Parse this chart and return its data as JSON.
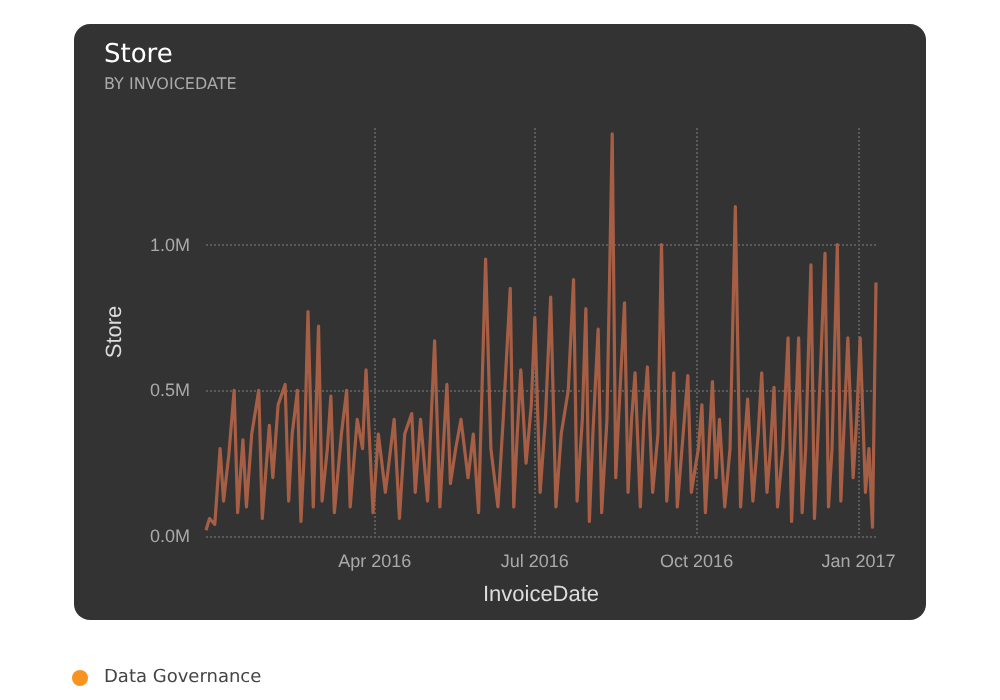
{
  "chart_data": {
    "type": "line",
    "title": "Store",
    "subtitle": "BY INVOICEDATE",
    "xlabel": "InvoiceDate",
    "ylabel": "Store",
    "annotations": [
      "Data Governance"
    ],
    "x": [
      "2015-12-27",
      "2015-12-29",
      "2016-01-01",
      "2016-01-04",
      "2016-01-06",
      "2016-01-09",
      "2016-01-12",
      "2016-01-14",
      "2016-01-17",
      "2016-01-19",
      "2016-01-22",
      "2016-01-26",
      "2016-01-28",
      "2016-02-01",
      "2016-02-03",
      "2016-02-06",
      "2016-02-10",
      "2016-02-12",
      "2016-02-14",
      "2016-02-17",
      "2016-02-19",
      "2016-02-21",
      "2016-02-23",
      "2016-02-26",
      "2016-02-29",
      "2016-03-02",
      "2016-03-05",
      "2016-03-07",
      "2016-03-09",
      "2016-03-13",
      "2016-03-16",
      "2016-03-18",
      "2016-03-22",
      "2016-03-25",
      "2016-03-27",
      "2016-03-31",
      "2016-04-03",
      "2016-04-07",
      "2016-04-10",
      "2016-04-12",
      "2016-04-15",
      "2016-04-18",
      "2016-04-22",
      "2016-04-24",
      "2016-04-27",
      "2016-05-01",
      "2016-05-05",
      "2016-05-08",
      "2016-05-12",
      "2016-05-14",
      "2016-05-17",
      "2016-05-20",
      "2016-05-24",
      "2016-05-27",
      "2016-05-30",
      "2016-06-03",
      "2016-06-06",
      "2016-06-10",
      "2016-06-13",
      "2016-06-17",
      "2016-06-19",
      "2016-06-21",
      "2016-06-23",
      "2016-06-26",
      "2016-06-29",
      "2016-07-01",
      "2016-07-04",
      "2016-07-07",
      "2016-07-10",
      "2016-07-13",
      "2016-07-16",
      "2016-07-20",
      "2016-07-23",
      "2016-07-25",
      "2016-07-28",
      "2016-07-30",
      "2016-08-01",
      "2016-08-03",
      "2016-08-06",
      "2016-08-08",
      "2016-08-11",
      "2016-08-14",
      "2016-08-16",
      "2016-08-18",
      "2016-08-21",
      "2016-08-23",
      "2016-08-25",
      "2016-08-27",
      "2016-08-30",
      "2016-09-01",
      "2016-09-03",
      "2016-09-06",
      "2016-09-09",
      "2016-09-11",
      "2016-09-14",
      "2016-09-16",
      "2016-09-18",
      "2016-09-20",
      "2016-09-24",
      "2016-09-26",
      "2016-09-28",
      "2016-10-02",
      "2016-10-04",
      "2016-10-06",
      "2016-10-10",
      "2016-10-12",
      "2016-10-14",
      "2016-10-17",
      "2016-10-20",
      "2016-10-23",
      "2016-10-26",
      "2016-10-28",
      "2016-10-30",
      "2016-11-02",
      "2016-11-05",
      "2016-11-07",
      "2016-11-10",
      "2016-11-12",
      "2016-11-14",
      "2016-11-16",
      "2016-11-19",
      "2016-11-22",
      "2016-11-24",
      "2016-11-28",
      "2016-11-30",
      "2016-12-02",
      "2016-12-05",
      "2016-12-07",
      "2016-12-09",
      "2016-12-13",
      "2016-12-15",
      "2016-12-17",
      "2016-12-20",
      "2016-12-22",
      "2016-12-24",
      "2016-12-26",
      "2016-12-29",
      "2016-12-31",
      "2017-01-02",
      "2017-01-05",
      "2017-01-07",
      "2017-01-09",
      "2017-01-11"
    ],
    "series": [
      {
        "color": "#a65f45",
        "values": [
          20000,
          60000,
          40000,
          300000,
          120000,
          280000,
          500000,
          80000,
          330000,
          100000,
          350000,
          500000,
          60000,
          380000,
          200000,
          450000,
          520000,
          120000,
          350000,
          500000,
          50000,
          300000,
          770000,
          100000,
          720000,
          120000,
          300000,
          480000,
          80000,
          350000,
          500000,
          100000,
          400000,
          300000,
          570000,
          80000,
          350000,
          150000,
          300000,
          400000,
          60000,
          350000,
          420000,
          150000,
          400000,
          120000,
          670000,
          100000,
          520000,
          180000,
          300000,
          400000,
          200000,
          350000,
          80000,
          950000,
          300000,
          100000,
          400000,
          850000,
          100000,
          350000,
          570000,
          250000,
          450000,
          750000,
          150000,
          400000,
          820000,
          100000,
          350000,
          500000,
          880000,
          120000,
          400000,
          780000,
          50000,
          350000,
          710000,
          80000,
          400000,
          1380000,
          200000,
          450000,
          800000,
          150000,
          400000,
          560000,
          100000,
          400000,
          580000,
          150000,
          350000,
          1000000,
          120000,
          300000,
          560000,
          100000,
          400000,
          550000,
          150000,
          300000,
          450000,
          80000,
          530000,
          200000,
          400000,
          100000,
          300000,
          1130000,
          100000,
          300000,
          470000,
          120000,
          350000,
          560000,
          150000,
          300000,
          510000,
          100000,
          300000,
          680000,
          50000,
          680000,
          80000,
          300000,
          930000,
          60000,
          350000,
          970000,
          100000,
          300000,
          1000000,
          120000,
          400000,
          680000,
          200000,
          400000,
          680000,
          150000,
          300000,
          30000,
          870000
        ]
      }
    ],
    "xlim": [
      "2015-12-27",
      "2017-01-11"
    ],
    "xticks": [
      {
        "value": "2016-04-01",
        "label": "Apr 2016"
      },
      {
        "value": "2016-07-01",
        "label": "Jul 2016"
      },
      {
        "value": "2016-10-01",
        "label": "Oct 2016"
      },
      {
        "value": "2017-01-01",
        "label": "Jan 2017"
      }
    ],
    "ylim": [
      0,
      1400000
    ],
    "yticks": [
      {
        "value": 0,
        "label": "0.0M"
      },
      {
        "value": 500000,
        "label": "0.5M"
      },
      {
        "value": 1000000,
        "label": "1.0M"
      }
    ],
    "grid": true,
    "marker": "none",
    "line_style": "solid"
  }
}
